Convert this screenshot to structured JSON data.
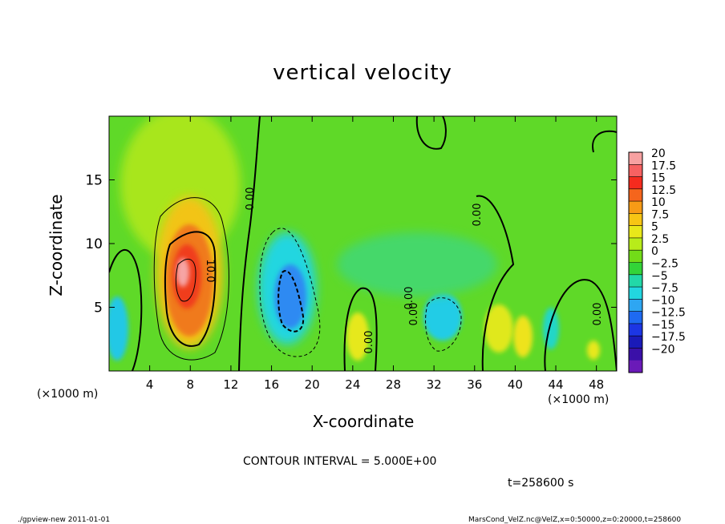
{
  "chart_data": {
    "type": "heatmap",
    "title": "vertical velocity",
    "xlabel": "X-coordinate",
    "ylabel": "Z-coordinate",
    "x_unit_left": "(×1000 m)",
    "x_unit_right": "(×1000 m)",
    "xlim": [
      0,
      50
    ],
    "ylim": [
      0,
      20
    ],
    "x_ticks": [
      "4",
      "8",
      "12",
      "16",
      "20",
      "24",
      "28",
      "32",
      "36",
      "40",
      "44",
      "48"
    ],
    "x_tick_values": [
      4,
      8,
      12,
      16,
      20,
      24,
      28,
      32,
      36,
      40,
      44,
      48
    ],
    "y_ticks": [
      "5",
      "10",
      "15"
    ],
    "y_tick_values": [
      5,
      10,
      15
    ],
    "colorbar": {
      "labels": [
        "20",
        "17.5",
        "15",
        "12.5",
        "10",
        "7.5",
        "5",
        "2.5",
        "0",
        "-2.5",
        "-5",
        "-7.5",
        "-10",
        "-12.5",
        "-15",
        "-17.5",
        "-20"
      ],
      "values": [
        20,
        17.5,
        15,
        12.5,
        10,
        7.5,
        5,
        2.5,
        0,
        -2.5,
        -5,
        -7.5,
        -10,
        -12.5,
        -15,
        -17.5,
        -20
      ],
      "colors": [
        "#f7a1a1",
        "#f76161",
        "#f52b1e",
        "#f5651c",
        "#f79b16",
        "#f7c514",
        "#e8e81a",
        "#b8ec1a",
        "#72dc18",
        "#33d438",
        "#22d8a8",
        "#22d6e0",
        "#2ea6f2",
        "#1e6af2",
        "#1c36e4",
        "#1a1ab8",
        "#3a10a8",
        "#6a1ab8"
      ]
    },
    "contour_interval": "CONTOUR INTERVAL = 5.000E+00",
    "contour_labels": [
      "0.00",
      "10.0",
      "0.00",
      "0.00",
      "0.00",
      "0.00",
      "0.00"
    ],
    "cells": [
      {
        "x": 7.8,
        "z": 7.0,
        "v": 15.0
      },
      {
        "x": 8.2,
        "z": 5.0,
        "v": 17.5
      },
      {
        "x": 1.0,
        "z": 3.0,
        "v": -10.0
      },
      {
        "x": 17.5,
        "z": 5.0,
        "v": -12.5
      },
      {
        "x": 25.0,
        "z": 2.5,
        "v": 7.5
      },
      {
        "x": 33.0,
        "z": 4.0,
        "v": -7.5
      },
      {
        "x": 39.0,
        "z": 3.5,
        "v": 7.5
      },
      {
        "x": 41.0,
        "z": 2.8,
        "v": 7.5
      },
      {
        "x": 44.0,
        "z": 3.0,
        "v": -5.0
      },
      {
        "x": 47.5,
        "z": 1.8,
        "v": 7.5
      }
    ]
  },
  "annotations": {
    "time": "t=258600 s",
    "footer_left": "./gpview-new   2011-01-01",
    "footer_right": "MarsCond_VelZ.nc@VelZ,x=0:50000,z=0:20000,t=258600"
  }
}
